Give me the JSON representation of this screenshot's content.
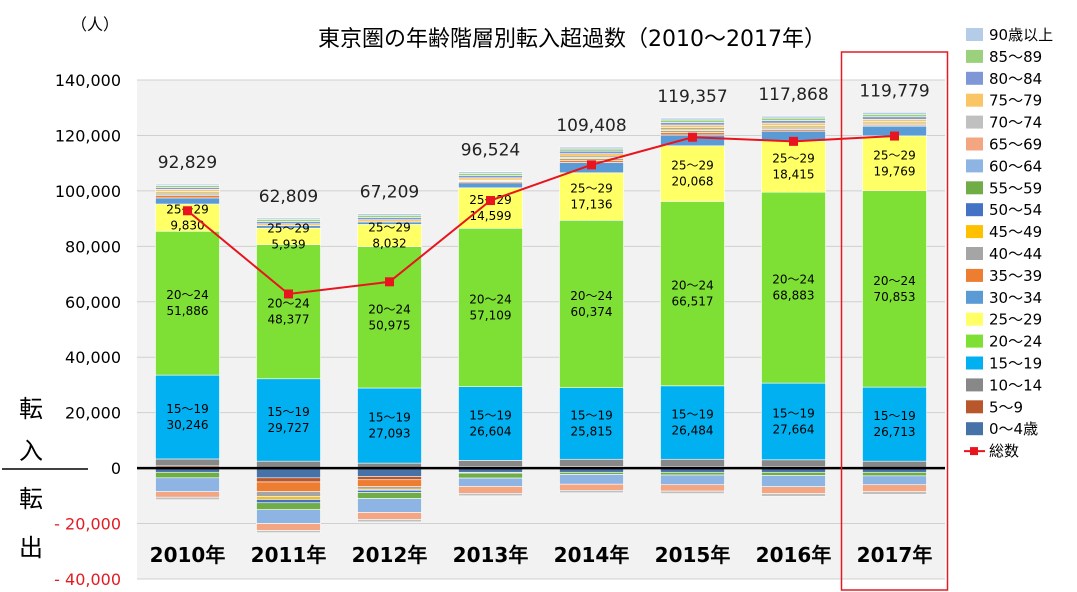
{
  "chart_data": {
    "type": "bar",
    "title": "東京圏の年齢階層別転入超過数（2010〜2017年）",
    "unit_label": "（人）",
    "side_label_in": [
      "転",
      "入"
    ],
    "side_label_out": [
      "転",
      "出"
    ],
    "categories": [
      "2010年",
      "2011年",
      "2012年",
      "2013年",
      "2014年",
      "2015年",
      "2016年",
      "2017年"
    ],
    "highlight_category": "2017年",
    "ylim": [
      -40000,
      140000
    ],
    "y_ticks": [
      {
        "value": 140000,
        "label": "140,000"
      },
      {
        "value": 120000,
        "label": "120,000"
      },
      {
        "value": 100000,
        "label": "100,000"
      },
      {
        "value": 80000,
        "label": "80,000"
      },
      {
        "value": 60000,
        "label": "60,000"
      },
      {
        "value": 40000,
        "label": "40,000"
      },
      {
        "value": 20000,
        "label": "20,000"
      },
      {
        "value": 0,
        "label": "0"
      },
      {
        "value": -20000,
        "label": "- 20,000"
      },
      {
        "value": -40000,
        "label": "- 40,000"
      }
    ],
    "grid": true,
    "legend_position": "right",
    "series": [
      {
        "name": "0〜4歳",
        "color": "#4672a8",
        "values": [
          -1500,
          -3500,
          -3000,
          -1500,
          -1500,
          -1500,
          -1500,
          -1500
        ]
      },
      {
        "name": "5〜9",
        "color": "#b7572b",
        "values": [
          800,
          -1500,
          -1200,
          500,
          600,
          500,
          500,
          300
        ]
      },
      {
        "name": "10〜14",
        "color": "#888888",
        "values": [
          2500,
          2500,
          1800,
          2300,
          2600,
          2700,
          2500,
          2200
        ]
      },
      {
        "name": "15〜19",
        "color": "#00b0f0",
        "values": [
          30246,
          29727,
          27093,
          26604,
          25815,
          26484,
          27664,
          26713
        ]
      },
      {
        "name": "20〜24",
        "color": "#7ee034",
        "values": [
          51886,
          48377,
          50975,
          57109,
          60374,
          66517,
          68883,
          70853
        ]
      },
      {
        "name": "25〜29",
        "color": "#ffff66",
        "values": [
          9830,
          5939,
          8032,
          14599,
          17136,
          20068,
          18415,
          19769
        ]
      },
      {
        "name": "30〜34",
        "color": "#5b9bd5",
        "values": [
          2200,
          900,
          900,
          1800,
          3700,
          3900,
          3600,
          3500
        ]
      },
      {
        "name": "35〜39",
        "color": "#ed7d31",
        "values": [
          800,
          -3500,
          -2500,
          400,
          800,
          900,
          600,
          400
        ]
      },
      {
        "name": "40〜44",
        "color": "#a5a5a5",
        "values": [
          600,
          -1800,
          -900,
          300,
          600,
          700,
          500,
          400
        ]
      },
      {
        "name": "45〜49",
        "color": "#ffc000",
        "values": [
          500,
          -1000,
          -400,
          300,
          500,
          600,
          500,
          500
        ]
      },
      {
        "name": "50〜54",
        "color": "#4472c4",
        "values": [
          400,
          -1200,
          -800,
          -300,
          400,
          500,
          400,
          400
        ]
      },
      {
        "name": "55〜59",
        "color": "#70ad47",
        "values": [
          -2000,
          -2500,
          -2200,
          -1800,
          -800,
          -1000,
          -1200,
          -1300
        ]
      },
      {
        "name": "60〜64",
        "color": "#8db4e2",
        "values": [
          -5000,
          -5000,
          -5000,
          -3000,
          -3500,
          -3500,
          -4000,
          -3200
        ]
      },
      {
        "name": "65〜69",
        "color": "#f4a582",
        "values": [
          -2000,
          -2500,
          -2500,
          -2500,
          -2200,
          -2300,
          -2500,
          -2500
        ]
      },
      {
        "name": "70〜74",
        "color": "#c0c0c0",
        "values": [
          -900,
          -800,
          -900,
          -900,
          -900,
          -900,
          -1000,
          -1000
        ]
      },
      {
        "name": "75〜79",
        "color": "#fac564",
        "values": [
          800,
          700,
          800,
          800,
          900,
          900,
          900,
          800
        ]
      },
      {
        "name": "80〜84",
        "color": "#7f97d6",
        "values": [
          700,
          800,
          800,
          800,
          900,
          900,
          900,
          900
        ]
      },
      {
        "name": "85〜89",
        "color": "#9bd17c",
        "values": [
          700,
          800,
          800,
          800,
          800,
          900,
          900,
          900
        ]
      },
      {
        "name": "90歳以上",
        "color": "#b4cce8",
        "values": [
          500,
          500,
          600,
          600,
          700,
          700,
          700,
          700
        ]
      }
    ],
    "total_series": {
      "name": "総数",
      "color": "#e8141e",
      "values": [
        92829,
        62809,
        67209,
        96524,
        109408,
        119357,
        117868,
        119779
      ],
      "labels": [
        "92,829",
        "62,809",
        "67,209",
        "96,524",
        "109,408",
        "119,357",
        "117,868",
        "119,779"
      ]
    },
    "segment_labels": {
      "15〜19": [
        "30,246",
        "29,727",
        "27,093",
        "26,604",
        "25,815",
        "26,484",
        "27,664",
        "26,713"
      ],
      "20〜24": [
        "51,886",
        "48,377",
        "50,975",
        "57,109",
        "60,374",
        "66,517",
        "68,883",
        "70,853"
      ],
      "25〜29": [
        "9,830",
        "5,939",
        "8,032",
        "14,599",
        "17,136",
        "20,068",
        "18,415",
        "19,769"
      ]
    }
  }
}
